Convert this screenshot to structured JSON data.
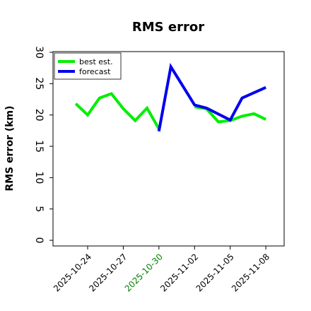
{
  "chart_data": {
    "type": "line",
    "title": "RMS error",
    "ylabel": "RMS error (km)",
    "xlabel": "",
    "ylim": [
      0,
      30
    ],
    "xlim": [
      "2025-10-21T02:00",
      "2025-11-09T13:00"
    ],
    "yticks": [
      0,
      5,
      10,
      15,
      20,
      25,
      30
    ],
    "xticks": [
      {
        "date": "2025-10-24",
        "label": "2025-10-24",
        "color": "#000000"
      },
      {
        "date": "2025-10-27",
        "label": "2025-10-27",
        "color": "#000000"
      },
      {
        "date": "2025-10-30",
        "label": "2025-10-30",
        "color": "#008000"
      },
      {
        "date": "2025-11-02",
        "label": "2025-11-02",
        "color": "#000000"
      },
      {
        "date": "2025-11-05",
        "label": "2025-11-05",
        "color": "#000000"
      },
      {
        "date": "2025-11-08",
        "label": "2025-11-08",
        "color": "#000000"
      }
    ],
    "grid": false,
    "legend_position": "top-left",
    "series": [
      {
        "name": "best est.",
        "color": "#00ee00",
        "points": [
          {
            "x": "2025-10-23",
            "y": 21.8
          },
          {
            "x": "2025-10-24",
            "y": 20.0
          },
          {
            "x": "2025-10-25",
            "y": 22.7
          },
          {
            "x": "2025-10-26",
            "y": 23.4
          },
          {
            "x": "2025-10-27",
            "y": 21.0
          },
          {
            "x": "2025-10-28",
            "y": 19.1
          },
          {
            "x": "2025-10-29",
            "y": 21.1
          },
          {
            "x": "2025-10-30",
            "y": 17.8
          }
        ]
      },
      {
        "name": "best est.",
        "color": "#00ee00",
        "points": [
          {
            "x": "2025-11-02",
            "y": 21.3
          },
          {
            "x": "2025-11-03",
            "y": 21.0
          },
          {
            "x": "2025-11-04",
            "y": 18.9
          },
          {
            "x": "2025-11-05",
            "y": 19.1
          },
          {
            "x": "2025-11-06",
            "y": 19.8
          },
          {
            "x": "2025-11-07",
            "y": 20.2
          },
          {
            "x": "2025-11-08",
            "y": 19.3
          }
        ]
      },
      {
        "name": "forecast",
        "color": "#0000ee",
        "points": [
          {
            "x": "2025-10-30",
            "y": 17.4
          },
          {
            "x": "2025-10-31",
            "y": 27.7
          },
          {
            "x": "2025-11-02",
            "y": 21.6
          },
          {
            "x": "2025-11-03",
            "y": 21.1
          },
          {
            "x": "2025-11-05",
            "y": 19.2
          },
          {
            "x": "2025-11-06",
            "y": 22.7
          },
          {
            "x": "2025-11-08",
            "y": 24.4
          }
        ]
      }
    ],
    "legend": [
      {
        "label": "best est.",
        "color": "#00ee00"
      },
      {
        "label": "forecast",
        "color": "#0000ee"
      }
    ]
  }
}
